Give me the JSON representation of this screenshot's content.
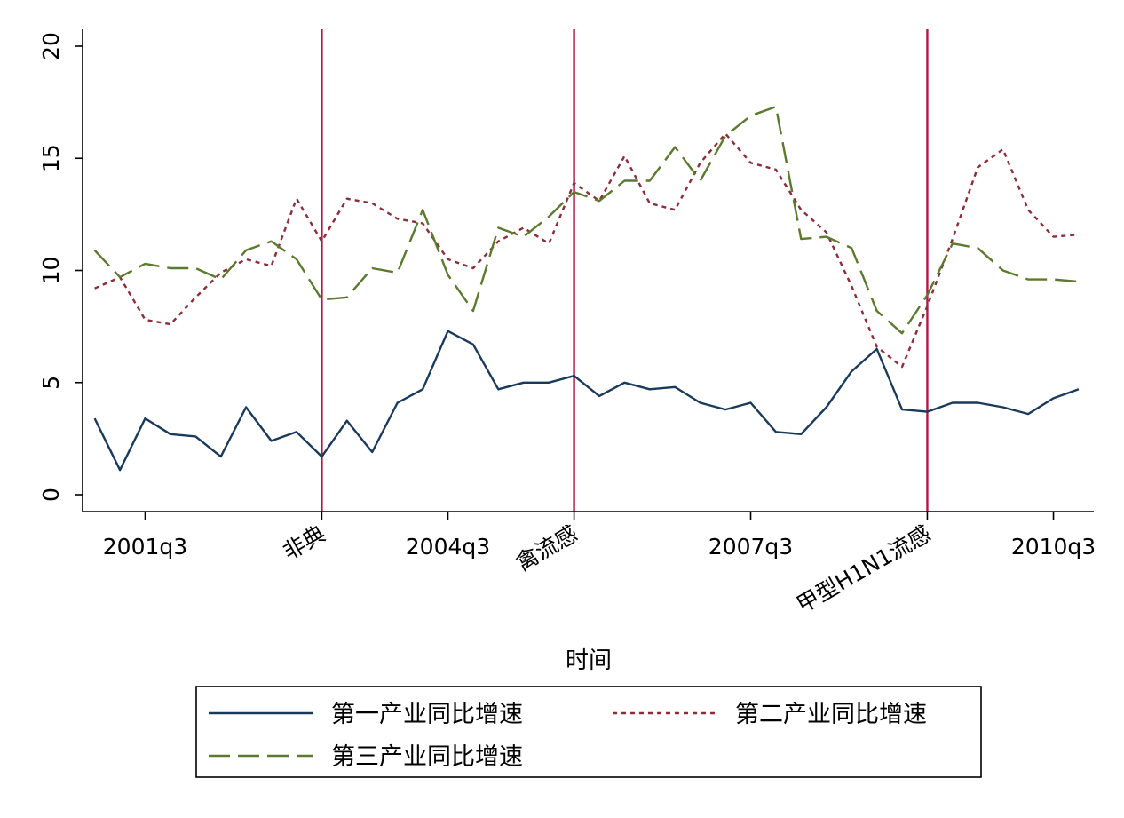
{
  "chart_data": {
    "type": "line",
    "title": "",
    "xlabel": "时间",
    "ylabel": "",
    "ylim": [
      0,
      20
    ],
    "yticks": [
      0,
      5,
      10,
      15,
      20
    ],
    "x": [
      2001.25,
      2001.5,
      2001.75,
      2002,
      2002.25,
      2002.5,
      2002.75,
      2003,
      2003.25,
      2003.5,
      2003.75,
      2004,
      2004.25,
      2004.5,
      2004.75,
      2005,
      2005.25,
      2005.5,
      2005.75,
      2006,
      2006.25,
      2006.5,
      2006.75,
      2007,
      2007.25,
      2007.5,
      2007.75,
      2008,
      2008.25,
      2008.5,
      2008.75,
      2009,
      2009.25,
      2009.5,
      2009.75,
      2010,
      2010.25,
      2010.5,
      2010.75,
      2011
    ],
    "xlim": [
      2001.13,
      2011.15
    ],
    "xticks": [
      {
        "x": 2001.75,
        "label": "2001q3",
        "rotated": false
      },
      {
        "x": 2003.5,
        "label": "非典",
        "rotated": true
      },
      {
        "x": 2004.75,
        "label": "2004q3",
        "rotated": false
      },
      {
        "x": 2006,
        "label": "禽流感",
        "rotated": true
      },
      {
        "x": 2007.75,
        "label": "2007q3",
        "rotated": false
      },
      {
        "x": 2009.5,
        "label": "甲型H1N1流感",
        "rotated": true
      },
      {
        "x": 2010.75,
        "label": "2010q3",
        "rotated": false
      }
    ],
    "vlines": [
      2003.5,
      2006,
      2009.5
    ],
    "vline_color": "#b0174a",
    "series": [
      {
        "name": "第一产业同比增速",
        "style": "solid",
        "color": "#1a3a5c",
        "values": [
          3.4,
          1.1,
          3.4,
          2.7,
          2.6,
          1.7,
          3.9,
          2.4,
          2.8,
          1.7,
          3.3,
          1.9,
          4.1,
          4.7,
          7.3,
          6.7,
          4.7,
          5.0,
          5.0,
          5.3,
          4.4,
          5.0,
          4.7,
          4.8,
          4.1,
          3.8,
          4.1,
          2.8,
          2.7,
          3.9,
          5.5,
          6.5,
          3.8,
          3.7,
          4.1,
          4.1,
          3.9,
          3.6,
          4.3,
          4.7
        ]
      },
      {
        "name": "第二产业同比增速",
        "style": "dotted",
        "color": "#8c2d3a",
        "values": [
          9.2,
          9.7,
          7.8,
          7.6,
          8.8,
          9.9,
          10.5,
          10.2,
          13.2,
          11.3,
          13.2,
          13.0,
          12.3,
          12.1,
          10.5,
          10.1,
          11.3,
          11.9,
          11.2,
          13.9,
          13.1,
          15.1,
          13.0,
          12.7,
          14.8,
          16.1,
          14.8,
          14.5,
          12.7,
          11.7,
          9.3,
          6.6,
          5.7,
          8.4,
          11.4,
          14.6,
          15.4,
          12.7,
          11.5,
          11.6
        ]
      },
      {
        "name": "第三产业同比增速",
        "style": "dashed",
        "color": "#5b7a2e",
        "values": [
          10.9,
          9.7,
          10.3,
          10.1,
          10.1,
          9.6,
          10.9,
          11.3,
          10.5,
          8.7,
          8.8,
          10.1,
          9.9,
          12.7,
          9.8,
          8.2,
          11.9,
          11.5,
          12.4,
          13.5,
          13.1,
          14.0,
          14.0,
          15.5,
          14.0,
          16.0,
          16.9,
          17.3,
          11.4,
          11.5,
          11.0,
          8.2,
          7.2,
          8.9,
          11.2,
          11.0,
          10.0,
          9.6,
          9.6,
          9.5
        ]
      }
    ],
    "legend": {
      "placement": "bottom"
    }
  }
}
